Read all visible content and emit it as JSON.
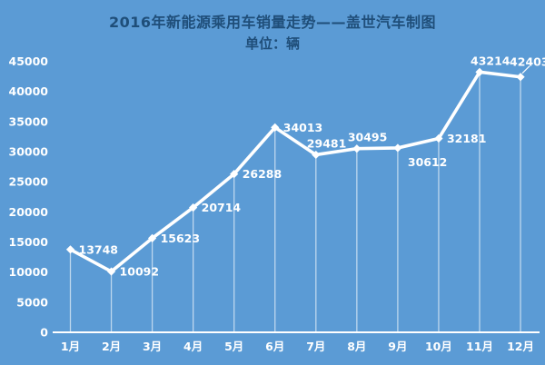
{
  "header": {
    "title": "2016年新能源乘用车销量走势——盖世汽车制图",
    "subtitle": "单位：辆"
  },
  "colors": {
    "background": "#5b9bd5",
    "title_text": "#1f4e79",
    "line": "#ffffff",
    "marker": "#ffffff",
    "label_text": "#ffffff",
    "axis_line": "#ffffff",
    "drop_line": "rgba(255,255,255,0.6)"
  },
  "chart_data": {
    "type": "line",
    "title": "2016年新能源乘用车销量走势——盖世汽车制图",
    "subtitle": "单位：辆",
    "categories": [
      "1月",
      "2月",
      "3月",
      "4月",
      "5月",
      "6月",
      "7月",
      "8月",
      "9月",
      "10月",
      "11月",
      "12月"
    ],
    "values": [
      13748,
      10092,
      15623,
      20714,
      26288,
      34013,
      29481,
      30495,
      30612,
      32181,
      43214,
      42403
    ],
    "xlabel": "",
    "ylabel": "",
    "ylim": [
      0,
      45000
    ],
    "ytick_step": 5000,
    "yticks": [
      0,
      5000,
      10000,
      15000,
      20000,
      25000,
      30000,
      35000,
      40000,
      45000
    ],
    "gridlines": "none",
    "legend": "none",
    "marker_shape": "diamond",
    "data_labels_visible": true,
    "label_positions": [
      "right",
      "right",
      "right",
      "right",
      "right",
      "right",
      "above",
      "above",
      "below",
      "right",
      "above",
      "leader"
    ]
  }
}
